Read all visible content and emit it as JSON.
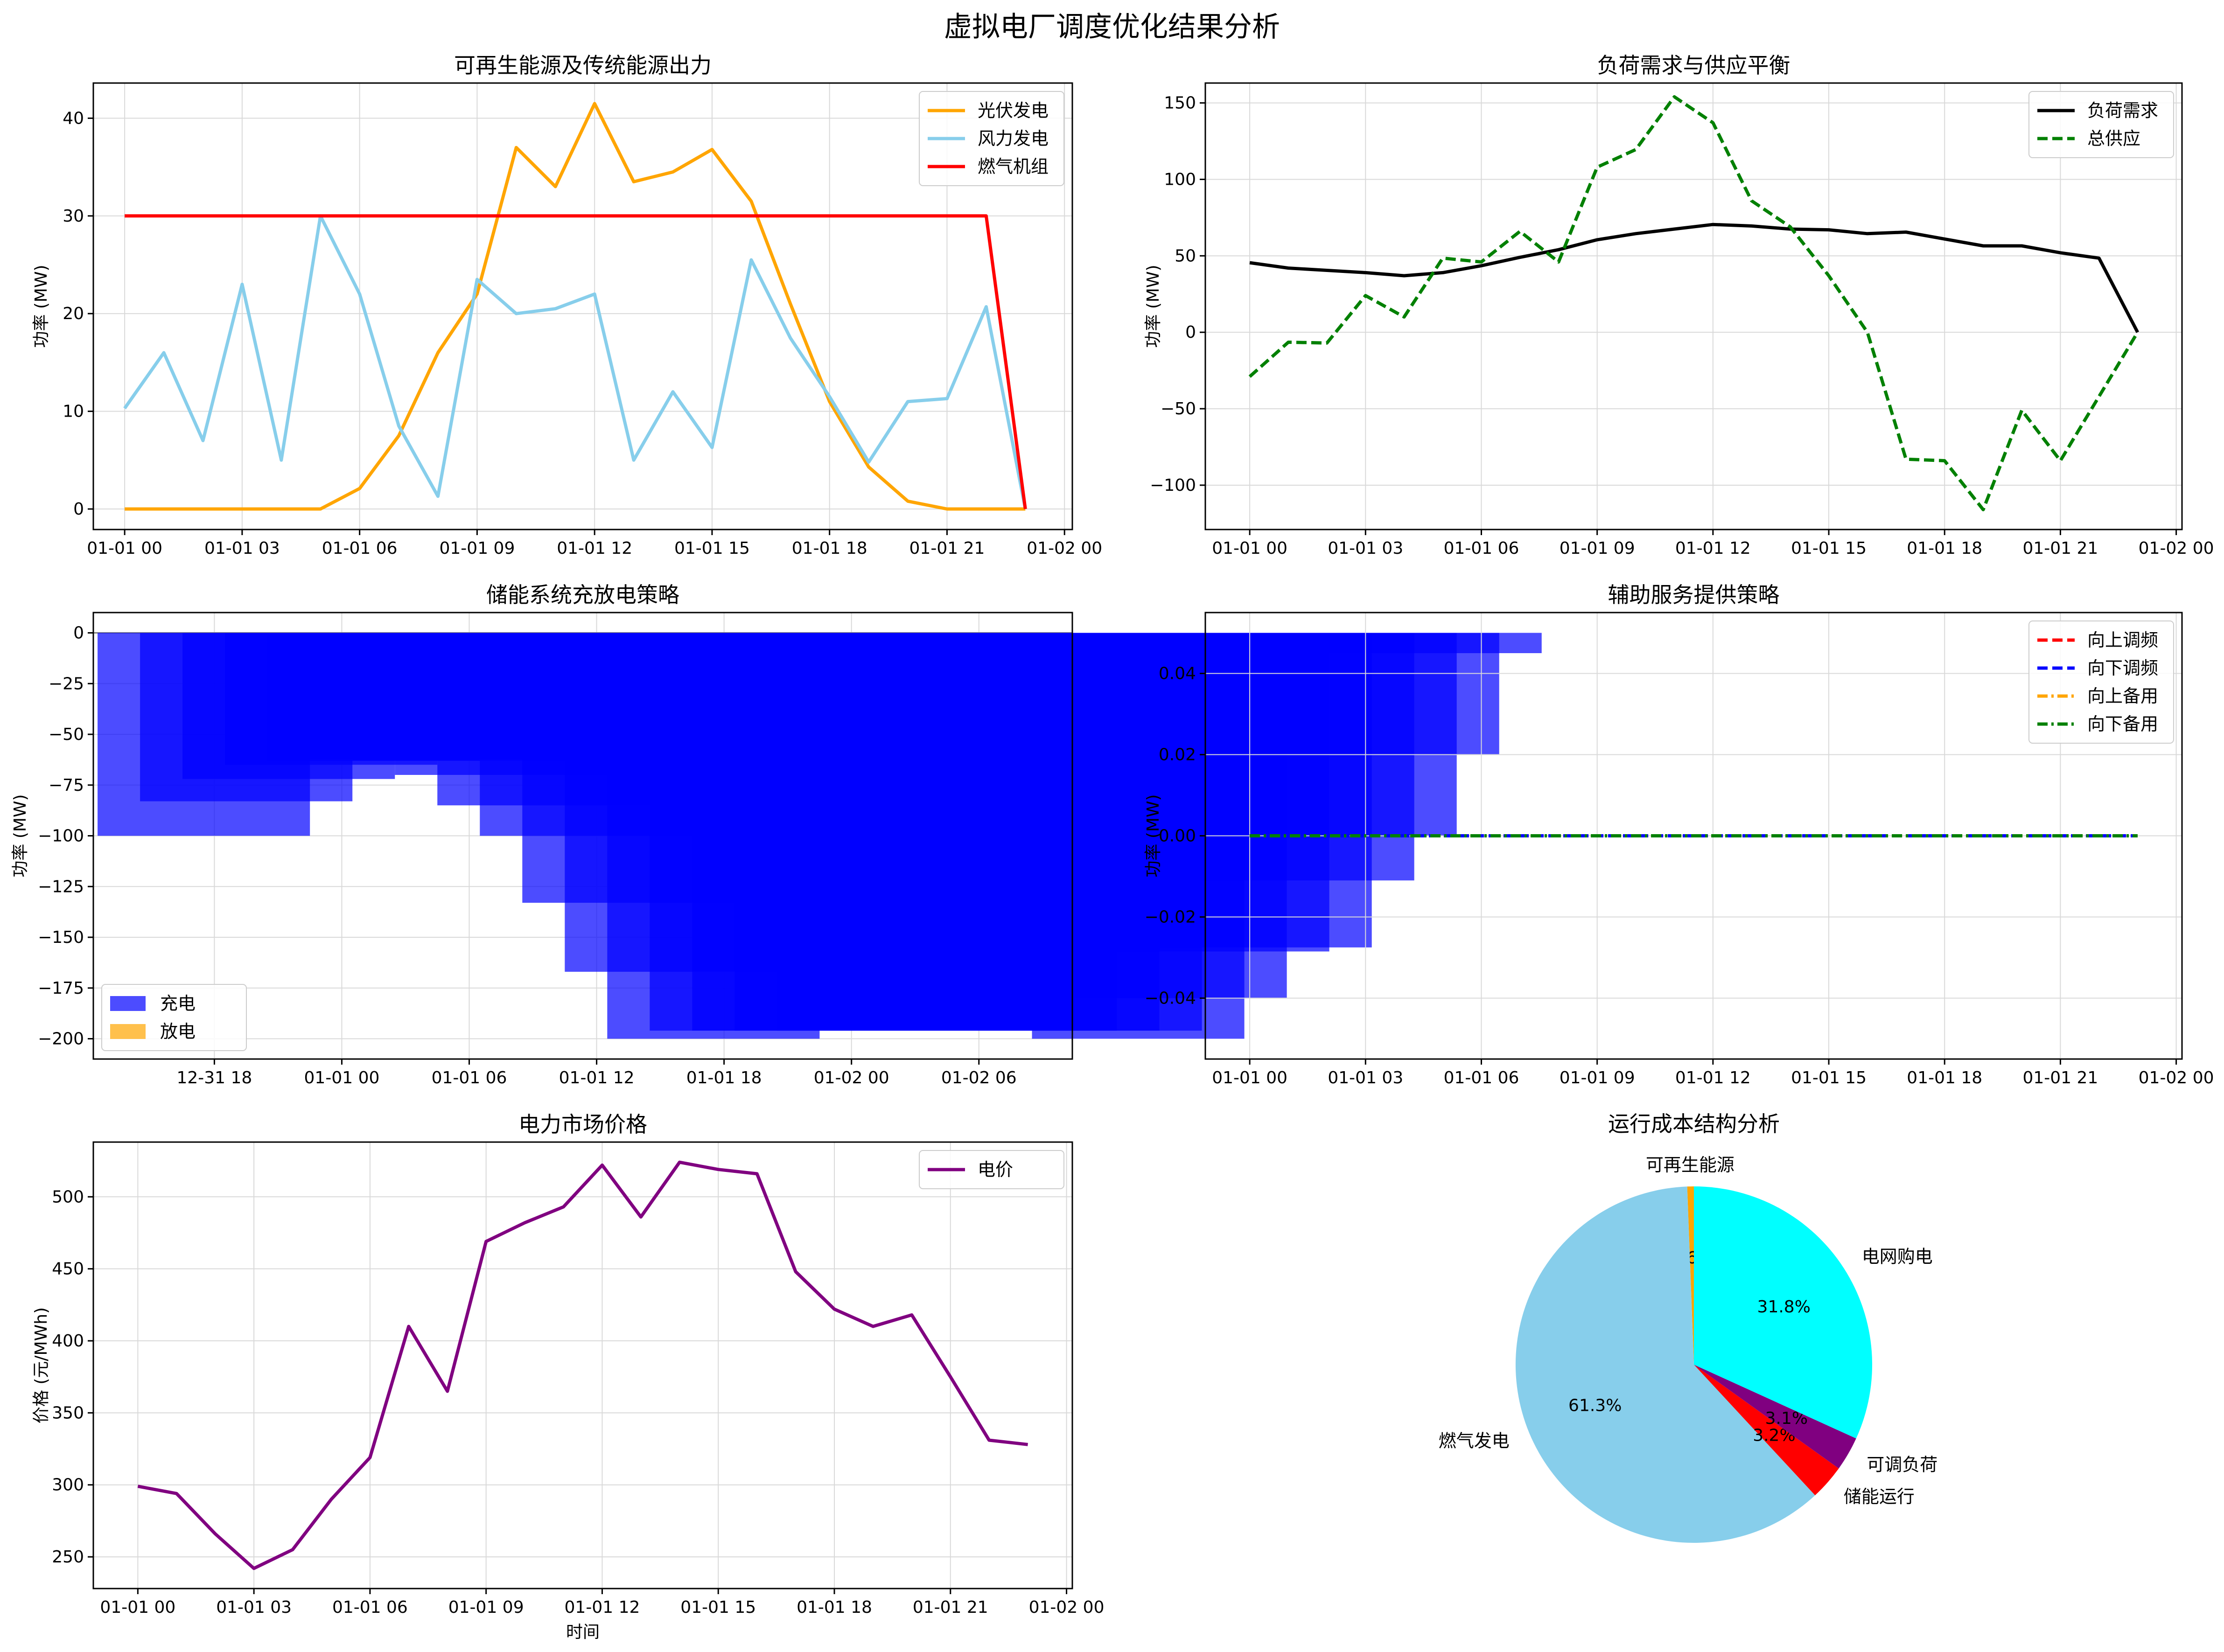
{
  "figure": {
    "suptitle": "虚拟电厂调度优化结果分析"
  },
  "chart_data": [
    {
      "id": "renewable",
      "type": "line",
      "title": "可再生能源及传统能源出力",
      "ylabel": "功率 (MW)",
      "xlim": [
        -0.8,
        24.2
      ],
      "ylim": [
        -2.1,
        43.6
      ],
      "xticks": [
        0,
        3,
        6,
        9,
        12,
        15,
        18,
        21,
        24
      ],
      "xticklabels": [
        "01-01 00",
        "01-01 03",
        "01-01 06",
        "01-01 09",
        "01-01 12",
        "01-01 15",
        "01-01 18",
        "01-01 21",
        "01-02 00"
      ],
      "yticks": [
        0,
        10,
        20,
        30,
        40
      ],
      "legend": "top-right",
      "grid": true,
      "x": [
        0,
        1,
        2,
        3,
        4,
        5,
        6,
        7,
        8,
        9,
        10,
        11,
        12,
        13,
        14,
        15,
        16,
        17,
        18,
        19,
        20,
        21,
        22,
        23
      ],
      "series": [
        {
          "name": "光伏发电",
          "color": "#ffa500",
          "values": [
            0,
            0,
            0,
            0,
            0,
            0,
            2.1,
            7.5,
            16,
            22,
            37,
            33,
            41.5,
            33.5,
            34.5,
            36.8,
            31.5,
            21,
            11,
            4.3,
            0.8,
            0,
            0,
            0
          ]
        },
        {
          "name": "风力发电",
          "color": "#87ceeb",
          "values": [
            10.3,
            16,
            7,
            23,
            5,
            30,
            22,
            8.5,
            1.3,
            23.5,
            20,
            20.5,
            22,
            5,
            12,
            6.3,
            25.5,
            17.5,
            11.5,
            4.8,
            11,
            11.3,
            20.7,
            0
          ]
        },
        {
          "name": "燃气机组",
          "color": "#ff0000",
          "values": [
            30,
            30,
            30,
            30,
            30,
            30,
            30,
            30,
            30,
            30,
            30,
            30,
            30,
            30,
            30,
            30,
            30,
            30,
            30,
            30,
            30,
            30,
            30,
            0
          ]
        }
      ]
    },
    {
      "id": "balance",
      "type": "line",
      "title": "负荷需求与供应平衡",
      "ylabel": "功率 (MW)",
      "xlim": [
        -1.15,
        24.15
      ],
      "ylim": [
        -129,
        163
      ],
      "xticks": [
        0,
        3,
        6,
        9,
        12,
        15,
        18,
        21,
        24
      ],
      "xticklabels": [
        "01-01 00",
        "01-01 03",
        "01-01 06",
        "01-01 09",
        "01-01 12",
        "01-01 15",
        "01-01 18",
        "01-01 21",
        "01-02 00"
      ],
      "yticks": [
        -100,
        -50,
        0,
        50,
        100,
        150
      ],
      "legend": "top-right",
      "grid": true,
      "x": [
        0,
        1,
        2,
        3,
        4,
        5,
        6,
        7,
        8,
        9,
        10,
        11,
        12,
        13,
        14,
        15,
        16,
        17,
        18,
        19,
        20,
        21,
        22,
        23
      ],
      "series": [
        {
          "name": "负荷需求",
          "color": "#000000",
          "dash": "solid",
          "values": [
            45.5,
            42,
            40.5,
            39,
            37,
            39,
            43.5,
            49,
            54,
            60.5,
            64.5,
            67.5,
            70.5,
            69.5,
            67.5,
            67,
            64.5,
            65.5,
            61,
            56.5,
            56.5,
            52,
            48.5,
            0
          ]
        },
        {
          "name": "总供应",
          "color": "#008000",
          "dash": "dashed",
          "values": [
            -29,
            -6.5,
            -7,
            24,
            10,
            48.5,
            46,
            66,
            46,
            108,
            119.5,
            154,
            137,
            86,
            69,
            37,
            0,
            -83,
            -84,
            -116,
            -51,
            -84,
            -42,
            0
          ]
        }
      ]
    },
    {
      "id": "storage",
      "type": "bar",
      "title": "储能系统充放电策略",
      "ylabel": "功率 (MW)",
      "xlim": [
        -0.1,
        22.95
      ],
      "ylim": [
        -210,
        10
      ],
      "xticks": [
        2.75,
        5.75,
        8.75,
        11.75,
        14.75,
        17.75,
        20.75
      ],
      "xticklabels": [
        "12-31 18",
        "01-01 00",
        "01-01 06",
        "01-01 12",
        "01-01 18",
        "01-02 00",
        "01-02 06"
      ],
      "yticks": [
        0,
        -25,
        -50,
        -75,
        -100,
        -125,
        -150,
        -175,
        -200
      ],
      "legend": "bottom-left",
      "grid": true,
      "series": [
        {
          "name": "充电",
          "color": "#0000ff",
          "opacity": 0.7,
          "values": [
            -100,
            -83,
            -72,
            -65,
            -63,
            -62,
            -63,
            -70,
            -85,
            -100,
            -133,
            -167,
            -200,
            -196,
            -196,
            -196,
            -196,
            -196,
            -196,
            -196,
            -196,
            -196,
            -200,
            -180,
            -157,
            -155,
            -122,
            -100,
            -60,
            -10
          ]
        },
        {
          "name": "放电",
          "color": "#ffa500",
          "opacity": 0.7,
          "values": []
        }
      ],
      "reference_line": 0
    },
    {
      "id": "ancillary",
      "type": "line",
      "title": "辅助服务提供策略",
      "ylabel": "功率 (MW)",
      "xlim": [
        -1.15,
        24.15
      ],
      "ylim": [
        -0.055,
        0.055
      ],
      "xticks": [
        0,
        3,
        6,
        9,
        12,
        15,
        18,
        21,
        24
      ],
      "xticklabels": [
        "01-01 00",
        "01-01 03",
        "01-01 06",
        "01-01 09",
        "01-01 12",
        "01-01 15",
        "01-01 18",
        "01-01 21",
        "01-02 00"
      ],
      "yticks": [
        0.04,
        0.02,
        0.0,
        -0.02,
        -0.04
      ],
      "yticklabels": [
        "0.04",
        "0.02",
        "0.00",
        "−0.02",
        "−0.04"
      ],
      "legend": "top-right",
      "grid": true,
      "x": [
        0,
        1,
        2,
        3,
        4,
        5,
        6,
        7,
        8,
        9,
        10,
        11,
        12,
        13,
        14,
        15,
        16,
        17,
        18,
        19,
        20,
        21,
        22,
        23
      ],
      "series": [
        {
          "name": "向上调频",
          "color": "#ff0000",
          "dash": "dashed",
          "values": [
            0,
            0,
            0,
            0,
            0,
            0,
            0,
            0,
            0,
            0,
            0,
            0,
            0,
            0,
            0,
            0,
            0,
            0,
            0,
            0,
            0,
            0,
            0,
            0
          ]
        },
        {
          "name": "向下调频",
          "color": "#0000ff",
          "dash": "dashed",
          "values": [
            0,
            0,
            0,
            0,
            0,
            0,
            0,
            0,
            0,
            0,
            0,
            0,
            0,
            0,
            0,
            0,
            0,
            0,
            0,
            0,
            0,
            0,
            0,
            0
          ]
        },
        {
          "name": "向上备用",
          "color": "#ffa500",
          "dash": "dashdot",
          "values": [
            0,
            0,
            0,
            0,
            0,
            0,
            0,
            0,
            0,
            0,
            0,
            0,
            0,
            0,
            0,
            0,
            0,
            0,
            0,
            0,
            0,
            0,
            0,
            0
          ]
        },
        {
          "name": "向下备用",
          "color": "#008000",
          "dash": "dashdot",
          "values": [
            0,
            0,
            0,
            0,
            0,
            0,
            0,
            0,
            0,
            0,
            0,
            0,
            0,
            0,
            0,
            0,
            0,
            0,
            0,
            0,
            0,
            0,
            0,
            0
          ]
        }
      ]
    },
    {
      "id": "price",
      "type": "line",
      "title": "电力市场价格",
      "ylabel": "价格 (元/MWh)",
      "xlabel": "时间",
      "xlim": [
        -1.15,
        24.15
      ],
      "ylim": [
        228,
        538
      ],
      "xticks": [
        0,
        3,
        6,
        9,
        12,
        15,
        18,
        21,
        24
      ],
      "xticklabels": [
        "01-01 00",
        "01-01 03",
        "01-01 06",
        "01-01 09",
        "01-01 12",
        "01-01 15",
        "01-01 18",
        "01-01 21",
        "01-02 00"
      ],
      "yticks": [
        250,
        300,
        350,
        400,
        450,
        500
      ],
      "legend": "top-right",
      "grid": true,
      "x": [
        0,
        1,
        2,
        3,
        4,
        5,
        6,
        7,
        8,
        9,
        10,
        11,
        12,
        13,
        14,
        15,
        16,
        17,
        18,
        19,
        20,
        21,
        22,
        23
      ],
      "series": [
        {
          "name": "电价",
          "color": "#800080",
          "values": [
            299,
            294,
            266,
            242,
            255,
            290,
            319,
            410,
            365,
            469,
            482,
            493,
            522,
            486,
            524,
            519,
            516,
            448,
            422,
            410,
            418,
            375,
            331,
            328
          ]
        }
      ]
    },
    {
      "id": "cost",
      "type": "pie",
      "title": "运行成本结构分析",
      "slices": [
        {
          "label": "可再生能源",
          "value": 0.6,
          "pct": "0.6%",
          "color": "#ffa500"
        },
        {
          "label": "燃气发电",
          "value": 61.3,
          "pct": "61.3%",
          "color": "#87ceeb"
        },
        {
          "label": "储能运行",
          "value": 3.2,
          "pct": "3.2%",
          "color": "#ff0000"
        },
        {
          "label": "可调负荷",
          "value": 3.1,
          "pct": "3.1%",
          "color": "#800080"
        },
        {
          "label": "电网购电",
          "value": 31.8,
          "pct": "31.8%",
          "color": "#00ffff"
        }
      ]
    }
  ]
}
